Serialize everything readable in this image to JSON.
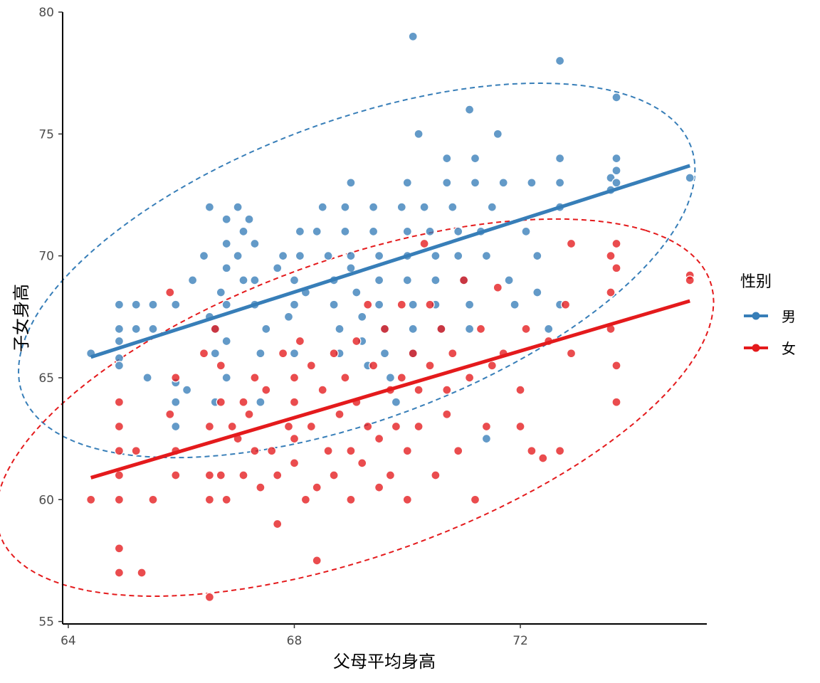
{
  "chart_data": {
    "type": "scatter",
    "xlabel": "父母平均身高",
    "ylabel": "子女身高",
    "xlim": [
      63.9,
      75.3
    ],
    "ylim": [
      54.9,
      80.0
    ],
    "xticks": [
      64,
      68,
      72
    ],
    "yticks": [
      55,
      60,
      65,
      70,
      75,
      80
    ],
    "grid": false,
    "legend": {
      "title": "性别",
      "position": "right"
    },
    "series": [
      {
        "name": "男",
        "color": "#377EB8",
        "points": [
          [
            64.4,
            66.0
          ],
          [
            64.9,
            68.0
          ],
          [
            64.9,
            67.0
          ],
          [
            64.9,
            66.5
          ],
          [
            64.9,
            65.8
          ],
          [
            64.9,
            65.5
          ],
          [
            65.2,
            68.0
          ],
          [
            65.2,
            67.0
          ],
          [
            65.4,
            65.0
          ],
          [
            65.5,
            68.0
          ],
          [
            65.5,
            67.0
          ],
          [
            65.9,
            64.8
          ],
          [
            65.9,
            64.0
          ],
          [
            65.9,
            63.0
          ],
          [
            65.9,
            68.0
          ],
          [
            66.1,
            64.5
          ],
          [
            66.2,
            69.0
          ],
          [
            66.4,
            70.0
          ],
          [
            66.5,
            72.0
          ],
          [
            66.5,
            67.5
          ],
          [
            66.6,
            67.0
          ],
          [
            66.6,
            66.0
          ],
          [
            66.6,
            64.0
          ],
          [
            66.7,
            68.5
          ],
          [
            66.8,
            71.5
          ],
          [
            66.8,
            70.5
          ],
          [
            66.8,
            69.5
          ],
          [
            66.8,
            68.0
          ],
          [
            66.8,
            66.5
          ],
          [
            66.8,
            65.0
          ],
          [
            67.0,
            72.0
          ],
          [
            67.0,
            70.0
          ],
          [
            67.1,
            71.0
          ],
          [
            67.1,
            69.0
          ],
          [
            67.2,
            71.5
          ],
          [
            67.3,
            70.5
          ],
          [
            67.3,
            69.0
          ],
          [
            67.3,
            68.0
          ],
          [
            67.4,
            66.0
          ],
          [
            67.4,
            64.0
          ],
          [
            67.5,
            67.0
          ],
          [
            67.7,
            69.5
          ],
          [
            67.8,
            70.0
          ],
          [
            67.9,
            67.5
          ],
          [
            68.0,
            69.0
          ],
          [
            68.0,
            68.0
          ],
          [
            68.0,
            66.0
          ],
          [
            68.1,
            71.0
          ],
          [
            68.1,
            70.0
          ],
          [
            68.2,
            68.5
          ],
          [
            68.4,
            71.0
          ],
          [
            68.5,
            72.0
          ],
          [
            68.6,
            70.0
          ],
          [
            68.7,
            69.0
          ],
          [
            68.7,
            68.0
          ],
          [
            68.8,
            67.0
          ],
          [
            68.8,
            66.0
          ],
          [
            68.9,
            72.0
          ],
          [
            68.9,
            71.0
          ],
          [
            69.0,
            73.0
          ],
          [
            69.0,
            70.0
          ],
          [
            69.0,
            69.5
          ],
          [
            69.1,
            68.5
          ],
          [
            69.2,
            67.5
          ],
          [
            69.2,
            66.5
          ],
          [
            69.3,
            65.5
          ],
          [
            69.4,
            72.0
          ],
          [
            69.4,
            71.0
          ],
          [
            69.5,
            70.0
          ],
          [
            69.5,
            69.0
          ],
          [
            69.5,
            68.0
          ],
          [
            69.6,
            67.0
          ],
          [
            69.6,
            66.0
          ],
          [
            69.7,
            65.0
          ],
          [
            69.8,
            64.0
          ],
          [
            69.9,
            72.0
          ],
          [
            70.0,
            73.0
          ],
          [
            70.0,
            71.0
          ],
          [
            70.0,
            70.0
          ],
          [
            70.0,
            69.0
          ],
          [
            70.1,
            68.0
          ],
          [
            70.1,
            67.0
          ],
          [
            70.1,
            66.0
          ],
          [
            70.1,
            79.0
          ],
          [
            70.2,
            75.0
          ],
          [
            70.3,
            72.0
          ],
          [
            70.4,
            71.0
          ],
          [
            70.5,
            70.0
          ],
          [
            70.5,
            69.0
          ],
          [
            70.5,
            68.0
          ],
          [
            70.6,
            67.0
          ],
          [
            70.7,
            74.0
          ],
          [
            70.7,
            73.0
          ],
          [
            70.8,
            72.0
          ],
          [
            70.9,
            71.0
          ],
          [
            70.9,
            70.0
          ],
          [
            71.0,
            69.0
          ],
          [
            71.1,
            68.0
          ],
          [
            71.1,
            67.0
          ],
          [
            71.1,
            76.0
          ],
          [
            71.2,
            74.0
          ],
          [
            71.2,
            73.0
          ],
          [
            71.3,
            71.0
          ],
          [
            71.4,
            70.0
          ],
          [
            71.4,
            62.5
          ],
          [
            71.5,
            72.0
          ],
          [
            71.6,
            75.0
          ],
          [
            71.7,
            73.0
          ],
          [
            71.8,
            69.0
          ],
          [
            71.9,
            68.0
          ],
          [
            72.1,
            71.0
          ],
          [
            72.2,
            73.0
          ],
          [
            72.3,
            70.0
          ],
          [
            72.3,
            68.5
          ],
          [
            72.5,
            67.0
          ],
          [
            72.7,
            78.0
          ],
          [
            72.7,
            74.0
          ],
          [
            72.7,
            73.0
          ],
          [
            72.7,
            72.0
          ],
          [
            72.7,
            68.0
          ],
          [
            73.6,
            73.2
          ],
          [
            73.6,
            72.7
          ],
          [
            73.7,
            76.5
          ],
          [
            73.7,
            74.0
          ],
          [
            73.7,
            73.5
          ],
          [
            73.7,
            73.0
          ],
          [
            75.0,
            73.2
          ]
        ],
        "trend": {
          "x": [
            64.4,
            75.0
          ],
          "y": [
            65.85,
            73.7
          ]
        }
      },
      {
        "name": "女",
        "color": "#E41A1C",
        "points": [
          [
            64.4,
            60.0
          ],
          [
            64.9,
            64.0
          ],
          [
            64.9,
            63.0
          ],
          [
            64.9,
            62.0
          ],
          [
            64.9,
            61.0
          ],
          [
            64.9,
            60.0
          ],
          [
            64.9,
            58.0
          ],
          [
            64.9,
            57.0
          ],
          [
            65.2,
            62.0
          ],
          [
            65.3,
            57.0
          ],
          [
            65.5,
            60.0
          ],
          [
            65.8,
            68.5
          ],
          [
            65.8,
            63.5
          ],
          [
            65.9,
            65.0
          ],
          [
            65.9,
            62.0
          ],
          [
            65.9,
            61.0
          ],
          [
            66.4,
            66.0
          ],
          [
            66.5,
            63.0
          ],
          [
            66.5,
            61.0
          ],
          [
            66.5,
            60.0
          ],
          [
            66.5,
            56.0
          ],
          [
            66.6,
            67.0
          ],
          [
            66.7,
            65.5
          ],
          [
            66.7,
            64.0
          ],
          [
            66.7,
            61.0
          ],
          [
            66.8,
            60.0
          ],
          [
            66.9,
            63.0
          ],
          [
            67.0,
            62.5
          ],
          [
            67.1,
            64.0
          ],
          [
            67.1,
            61.0
          ],
          [
            67.2,
            63.5
          ],
          [
            67.3,
            65.0
          ],
          [
            67.3,
            62.0
          ],
          [
            67.4,
            60.5
          ],
          [
            67.5,
            64.5
          ],
          [
            67.6,
            62.0
          ],
          [
            67.7,
            61.0
          ],
          [
            67.7,
            59.0
          ],
          [
            67.8,
            66.0
          ],
          [
            67.9,
            63.0
          ],
          [
            68.0,
            65.0
          ],
          [
            68.0,
            64.0
          ],
          [
            68.0,
            62.5
          ],
          [
            68.0,
            61.5
          ],
          [
            68.1,
            66.5
          ],
          [
            68.2,
            60.0
          ],
          [
            68.3,
            63.0
          ],
          [
            68.3,
            65.5
          ],
          [
            68.4,
            57.5
          ],
          [
            68.4,
            60.5
          ],
          [
            68.5,
            64.5
          ],
          [
            68.6,
            62.0
          ],
          [
            68.7,
            66.0
          ],
          [
            68.7,
            61.0
          ],
          [
            68.8,
            63.5
          ],
          [
            68.9,
            65.0
          ],
          [
            69.0,
            62.0
          ],
          [
            69.0,
            60.0
          ],
          [
            69.1,
            66.5
          ],
          [
            69.1,
            64.0
          ],
          [
            69.2,
            61.5
          ],
          [
            69.3,
            68.0
          ],
          [
            69.3,
            63.0
          ],
          [
            69.4,
            65.5
          ],
          [
            69.5,
            62.5
          ],
          [
            69.5,
            60.5
          ],
          [
            69.6,
            67.0
          ],
          [
            69.7,
            64.5
          ],
          [
            69.7,
            61.0
          ],
          [
            69.8,
            63.0
          ],
          [
            69.9,
            68.0
          ],
          [
            69.9,
            65.0
          ],
          [
            70.0,
            62.0
          ],
          [
            70.0,
            60.0
          ],
          [
            70.1,
            66.0
          ],
          [
            70.2,
            63.0
          ],
          [
            70.2,
            64.5
          ],
          [
            70.3,
            70.5
          ],
          [
            70.4,
            68.0
          ],
          [
            70.4,
            65.5
          ],
          [
            70.5,
            61.0
          ],
          [
            70.6,
            67.0
          ],
          [
            70.7,
            63.5
          ],
          [
            70.7,
            64.5
          ],
          [
            70.8,
            66.0
          ],
          [
            70.9,
            62.0
          ],
          [
            71.0,
            69.0
          ],
          [
            71.1,
            65.0
          ],
          [
            71.2,
            60.0
          ],
          [
            71.3,
            67.0
          ],
          [
            71.4,
            63.0
          ],
          [
            71.5,
            65.5
          ],
          [
            71.6,
            68.7
          ],
          [
            71.7,
            66.0
          ],
          [
            72.0,
            64.5
          ],
          [
            72.0,
            63.0
          ],
          [
            72.1,
            67.0
          ],
          [
            72.2,
            62.0
          ],
          [
            72.4,
            61.7
          ],
          [
            72.5,
            66.5
          ],
          [
            72.7,
            62.0
          ],
          [
            72.8,
            68.0
          ],
          [
            72.9,
            70.5
          ],
          [
            72.9,
            66.0
          ],
          [
            73.6,
            70.0
          ],
          [
            73.6,
            68.5
          ],
          [
            73.6,
            67.0
          ],
          [
            73.7,
            70.5
          ],
          [
            73.7,
            69.5
          ],
          [
            73.7,
            65.5
          ],
          [
            73.7,
            64.0
          ],
          [
            75.0,
            69.2
          ],
          [
            75.0,
            69.0
          ]
        ],
        "trend": {
          "x": [
            64.4,
            75.0
          ],
          "y": [
            60.9,
            68.15
          ]
        }
      }
    ]
  }
}
